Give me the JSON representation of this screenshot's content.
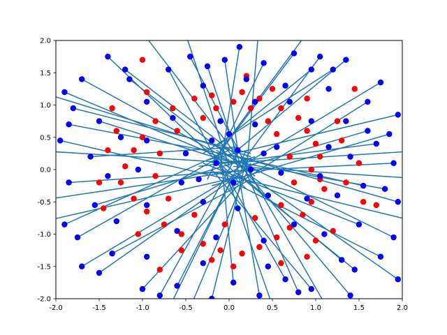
{
  "chart_data": {
    "type": "scatter",
    "title": "",
    "xlabel": "",
    "ylabel": "",
    "xlim": [
      -2.0,
      2.0
    ],
    "ylim": [
      -2.0,
      2.0
    ],
    "grid": false,
    "legend": "none",
    "x_ticks": [
      "-2.0",
      "-1.5",
      "-1.0",
      "-0.5",
      "0.0",
      "0.5",
      "1.0",
      "1.5",
      "2.0"
    ],
    "y_ticks": [
      "-2.0",
      "-1.5",
      "-1.0",
      "-0.5",
      "0.0",
      "0.5",
      "1.0",
      "1.5",
      "2.0"
    ],
    "colors": {
      "red_points": "#ff0000",
      "blue_points": "#0000ff",
      "segments": "#1f77b4"
    },
    "series": [
      {
        "marker": "red circles",
        "points": [
          [
            0.05,
            1.05
          ],
          [
            0.25,
            0.95
          ],
          [
            0.45,
            0.75
          ],
          [
            0.6,
            0.95
          ],
          [
            0.8,
            0.8
          ],
          [
            0.9,
            0.6
          ],
          [
            1.0,
            0.4
          ],
          [
            1.05,
            0.2
          ],
          [
            0.95,
            0.0
          ],
          [
            1.05,
            -0.15
          ],
          [
            1.1,
            -0.3
          ],
          [
            0.95,
            -0.5
          ],
          [
            0.85,
            -0.7
          ],
          [
            0.7,
            -0.9
          ],
          [
            0.55,
            -1.05
          ],
          [
            0.35,
            -1.2
          ],
          [
            0.15,
            -1.3
          ],
          [
            -0.1,
            -1.25
          ],
          [
            -0.3,
            -1.15
          ],
          [
            -0.55,
            -1.0
          ],
          [
            -0.75,
            -0.85
          ],
          [
            -0.95,
            -0.65
          ],
          [
            -1.1,
            -0.45
          ],
          [
            -1.25,
            -0.2
          ],
          [
            -1.2,
            0.05
          ],
          [
            -1.1,
            0.3
          ],
          [
            -1.0,
            0.5
          ],
          [
            -0.85,
            0.75
          ],
          [
            -0.65,
            0.95
          ],
          [
            -0.4,
            1.1
          ],
          [
            -0.2,
            1.15
          ],
          [
            0.15,
            1.2
          ],
          [
            0.35,
            1.1
          ],
          [
            -0.15,
            0.95
          ],
          [
            0.55,
            0.55
          ],
          [
            0.7,
            0.2
          ],
          [
            0.75,
            -0.2
          ],
          [
            0.6,
            -0.55
          ],
          [
            0.3,
            -0.75
          ],
          [
            -0.05,
            -0.85
          ],
          [
            -0.4,
            -0.7
          ],
          [
            -0.7,
            -0.45
          ],
          [
            -0.85,
            -0.1
          ],
          [
            -0.8,
            0.25
          ],
          [
            -0.6,
            0.6
          ],
          [
            -0.3,
            0.8
          ],
          [
            1.45,
            1.25
          ],
          [
            1.7,
            -0.55
          ],
          [
            -1.0,
            1.7
          ],
          [
            -0.8,
            -1.55
          ],
          [
            0.9,
            -1.35
          ],
          [
            1.3,
            0.45
          ],
          [
            -1.45,
            -0.6
          ],
          [
            0.2,
            1.45
          ],
          [
            -0.2,
            -1.4
          ],
          [
            1.2,
            -0.95
          ],
          [
            -1.35,
            0.95
          ],
          [
            0.5,
            1.25
          ],
          [
            -0.55,
            -1.25
          ],
          [
            1.35,
            -0.2
          ],
          [
            -1.4,
            0.3
          ],
          [
            0.9,
            1.1
          ],
          [
            -0.95,
            1.2
          ],
          [
            1.0,
            -1.1
          ],
          [
            -1.05,
            -1.0
          ],
          [
            0.6,
            -1.45
          ],
          [
            1.5,
            0.1
          ],
          [
            -1.5,
            -0.2
          ],
          [
            1.25,
            0.75
          ],
          [
            -1.3,
            0.6
          ],
          [
            0.05,
            -1.5
          ],
          [
            1.55,
            -0.5
          ]
        ]
      },
      {
        "marker": "blue circles",
        "points": [
          [
            0.12,
            1.9
          ],
          [
            -0.45,
            1.75
          ],
          [
            0.75,
            1.8
          ],
          [
            1.35,
            1.7
          ],
          [
            -1.4,
            1.75
          ],
          [
            -1.9,
            1.2
          ],
          [
            1.75,
            1.35
          ],
          [
            1.95,
            0.85
          ],
          [
            1.9,
            0.1
          ],
          [
            1.95,
            -0.5
          ],
          [
            1.9,
            -1.05
          ],
          [
            1.95,
            -1.7
          ],
          [
            1.4,
            -1.95
          ],
          [
            0.95,
            -1.85
          ],
          [
            0.35,
            -1.95
          ],
          [
            -0.2,
            -2.0
          ],
          [
            -1.0,
            -1.85
          ],
          [
            -1.7,
            -1.5
          ],
          [
            -1.9,
            -0.85
          ],
          [
            -1.85,
            -0.2
          ],
          [
            -1.95,
            0.45
          ],
          [
            -1.8,
            0.95
          ],
          [
            -0.7,
            1.55
          ],
          [
            0.4,
            1.65
          ],
          [
            0.95,
            1.55
          ],
          [
            1.6,
            1.05
          ],
          [
            1.7,
            0.4
          ],
          [
            1.55,
            -0.25
          ],
          [
            1.5,
            -0.85
          ],
          [
            1.3,
            -1.4
          ],
          [
            0.65,
            -1.7
          ],
          [
            -0.6,
            -1.8
          ],
          [
            -1.35,
            -1.3
          ],
          [
            -1.55,
            -0.55
          ],
          [
            -1.6,
            0.2
          ],
          [
            -1.5,
            0.75
          ],
          [
            -1.15,
            1.4
          ],
          [
            -0.25,
            1.6
          ],
          [
            0.2,
            1.4
          ],
          [
            0.65,
            1.3
          ],
          [
            1.15,
            1.25
          ],
          [
            1.35,
            0.75
          ],
          [
            1.4,
            0.2
          ],
          [
            1.25,
            -0.4
          ],
          [
            1.1,
            -1.0
          ],
          [
            0.45,
            -1.5
          ],
          [
            -0.3,
            -1.45
          ],
          [
            -0.95,
            -1.35
          ],
          [
            -1.3,
            -0.8
          ],
          [
            -1.4,
            -0.1
          ],
          [
            -1.25,
            0.5
          ],
          [
            -0.95,
            1.05
          ],
          [
            -0.3,
            1.3
          ],
          [
            0.3,
            1.05
          ],
          [
            0.7,
            1.05
          ],
          [
            0.95,
            0.75
          ],
          [
            1.15,
            0.35
          ],
          [
            1.05,
            -0.1
          ],
          [
            0.9,
            -0.45
          ],
          [
            0.75,
            -0.85
          ],
          [
            0.4,
            -1.1
          ],
          [
            -0.15,
            -1.05
          ],
          [
            -0.6,
            -0.95
          ],
          [
            -0.95,
            -0.55
          ],
          [
            -1.05,
            0.0
          ],
          [
            -0.95,
            0.45
          ],
          [
            -0.65,
            0.8
          ],
          [
            -0.1,
            0.75
          ],
          [
            0.3,
            0.7
          ],
          [
            0.55,
            0.35
          ],
          [
            0.6,
            -0.05
          ],
          [
            0.45,
            -0.4
          ],
          [
            0.1,
            -0.6
          ],
          [
            -0.3,
            -0.5
          ],
          [
            -0.55,
            -0.2
          ],
          [
            -0.5,
            0.25
          ],
          [
            -0.2,
            0.45
          ],
          [
            0.1,
            0.3
          ],
          [
            0.25,
            0.0
          ],
          [
            0.05,
            -0.2
          ],
          [
            -0.15,
            0.1
          ],
          [
            0.0,
            0.55
          ],
          [
            0.4,
            0.25
          ],
          [
            -0.35,
            -0.15
          ],
          [
            1.8,
            -0.3
          ],
          [
            1.6,
            0.6
          ],
          [
            1.75,
            -1.35
          ],
          [
            -1.75,
            -1.05
          ],
          [
            -1.7,
            1.4
          ],
          [
            0.8,
            -1.9
          ],
          [
            -0.8,
            -1.95
          ],
          [
            1.2,
            1.55
          ],
          [
            -1.2,
            1.55
          ],
          [
            1.45,
            -1.55
          ],
          [
            -1.5,
            -1.6
          ],
          [
            0.05,
            -1.75
          ],
          [
            1.05,
            1.75
          ],
          [
            -0.05,
            1.7
          ],
          [
            1.85,
            0.55
          ],
          [
            -1.85,
            0.7
          ]
        ]
      }
    ],
    "segments_description": "blue-colored lines connecting points across the plot",
    "segments": [
      [
        [
          0.12,
          1.9
        ],
        [
          -0.1,
          0.05
        ]
      ],
      [
        [
          -0.45,
          1.75
        ],
        [
          0.3,
          -0.2
        ]
      ],
      [
        [
          0.75,
          1.8
        ],
        [
          -0.2,
          0.1
        ]
      ],
      [
        [
          1.35,
          1.7
        ],
        [
          0.05,
          0.25
        ]
      ],
      [
        [
          -1.4,
          1.75
        ],
        [
          0.2,
          -0.3
        ]
      ],
      [
        [
          -1.9,
          1.2
        ],
        [
          0.15,
          0.05
        ]
      ],
      [
        [
          1.75,
          1.35
        ],
        [
          -0.05,
          -0.1
        ]
      ],
      [
        [
          1.95,
          0.85
        ],
        [
          -0.25,
          0.15
        ]
      ],
      [
        [
          1.9,
          0.1
        ],
        [
          -0.3,
          -0.05
        ]
      ],
      [
        [
          1.95,
          -0.5
        ],
        [
          0.1,
          0.2
        ]
      ],
      [
        [
          1.9,
          -1.05
        ],
        [
          -0.15,
          0.3
        ]
      ],
      [
        [
          1.95,
          -1.7
        ],
        [
          0.25,
          -0.1
        ]
      ],
      [
        [
          1.4,
          -1.95
        ],
        [
          -0.05,
          0.35
        ]
      ],
      [
        [
          0.95,
          -1.85
        ],
        [
          -0.2,
          0.0
        ]
      ],
      [
        [
          0.35,
          -1.95
        ],
        [
          0.05,
          0.4
        ]
      ],
      [
        [
          -0.2,
          -2.0
        ],
        [
          0.2,
          0.15
        ]
      ],
      [
        [
          -1.0,
          -1.85
        ],
        [
          0.1,
          -0.25
        ]
      ],
      [
        [
          -1.7,
          -1.5
        ],
        [
          0.3,
          0.1
        ]
      ],
      [
        [
          -1.9,
          -0.85
        ],
        [
          0.0,
          0.3
        ]
      ],
      [
        [
          -1.85,
          -0.2
        ],
        [
          0.35,
          0.0
        ]
      ],
      [
        [
          -1.95,
          0.45
        ],
        [
          0.15,
          -0.2
        ]
      ],
      [
        [
          -1.8,
          0.95
        ],
        [
          0.25,
          0.25
        ]
      ],
      [
        [
          -0.7,
          1.55
        ],
        [
          0.05,
          -0.35
        ]
      ],
      [
        [
          0.4,
          1.65
        ],
        [
          -0.25,
          -0.15
        ]
      ],
      [
        [
          0.95,
          1.55
        ],
        [
          -0.15,
          0.35
        ]
      ],
      [
        [
          1.6,
          1.05
        ],
        [
          0.0,
          -0.3
        ]
      ],
      [
        [
          1.7,
          0.4
        ],
        [
          -0.35,
          0.05
        ]
      ],
      [
        [
          1.55,
          -0.25
        ],
        [
          -0.1,
          0.25
        ]
      ],
      [
        [
          1.5,
          -0.85
        ],
        [
          -0.3,
          0.1
        ]
      ],
      [
        [
          1.3,
          -1.4
        ],
        [
          0.1,
          -0.05
        ]
      ],
      [
        [
          0.65,
          -1.7
        ],
        [
          -0.15,
          0.2
        ]
      ],
      [
        [
          -0.6,
          -1.8
        ],
        [
          0.2,
          0.3
        ]
      ],
      [
        [
          -1.35,
          -1.3
        ],
        [
          0.25,
          -0.15
        ]
      ],
      [
        [
          -1.55,
          -0.55
        ],
        [
          0.3,
          0.2
        ]
      ],
      [
        [
          -1.6,
          0.2
        ],
        [
          0.1,
          0.35
        ]
      ],
      [
        [
          -1.5,
          0.75
        ],
        [
          0.05,
          0.1
        ]
      ],
      [
        [
          -1.15,
          1.4
        ],
        [
          0.3,
          -0.1
        ]
      ],
      [
        [
          -0.25,
          1.6
        ],
        [
          0.15,
          0.0
        ]
      ],
      [
        [
          1.8,
          -0.3
        ],
        [
          -0.05,
          0.15
        ]
      ],
      [
        [
          1.6,
          0.6
        ],
        [
          0.2,
          0.05
        ]
      ],
      [
        [
          1.75,
          -1.35
        ],
        [
          0.05,
          -0.2
        ]
      ],
      [
        [
          -1.75,
          -1.05
        ],
        [
          -0.1,
          0.2
        ]
      ],
      [
        [
          -1.7,
          1.4
        ],
        [
          0.0,
          0.15
        ]
      ],
      [
        [
          0.8,
          -1.9
        ],
        [
          0.15,
          0.1
        ]
      ],
      [
        [
          -0.8,
          -1.95
        ],
        [
          0.1,
          0.25
        ]
      ],
      [
        [
          1.2,
          1.55
        ],
        [
          -0.3,
          0.25
        ]
      ],
      [
        [
          -1.2,
          1.55
        ],
        [
          0.35,
          -0.05
        ]
      ],
      [
        [
          1.45,
          -1.55
        ],
        [
          -0.2,
          0.25
        ]
      ],
      [
        [
          -1.5,
          -1.6
        ],
        [
          0.25,
          0.05
        ]
      ],
      [
        [
          0.05,
          -1.75
        ],
        [
          -0.1,
          0.3
        ]
      ],
      [
        [
          1.05,
          1.75
        ],
        [
          0.2,
          0.2
        ]
      ],
      [
        [
          -0.05,
          1.7
        ],
        [
          0.1,
          0.3
        ]
      ],
      [
        [
          1.85,
          0.55
        ],
        [
          -0.2,
          -0.25
        ]
      ],
      [
        [
          -1.85,
          0.7
        ],
        [
          0.3,
          0.15
        ]
      ],
      [
        [
          -2.3,
          1.25
        ],
        [
          0.25,
          0.2
        ]
      ],
      [
        [
          -2.3,
          0.3
        ],
        [
          0.1,
          0.1
        ]
      ],
      [
        [
          -2.3,
          -0.5
        ],
        [
          0.2,
          0.0
        ]
      ],
      [
        [
          -2.3,
          -0.85
        ],
        [
          0.15,
          -0.1
        ]
      ],
      [
        [
          2.3,
          0.3
        ],
        [
          -0.05,
          0.1
        ]
      ],
      [
        [
          2.3,
          -0.15
        ],
        [
          0.05,
          0.05
        ]
      ],
      [
        [
          2.3,
          -0.85
        ],
        [
          -0.15,
          -0.05
        ]
      ],
      [
        [
          -1.1,
          2.3
        ],
        [
          0.1,
          0.2
        ]
      ],
      [
        [
          -0.55,
          2.3
        ],
        [
          0.0,
          0.05
        ]
      ],
      [
        [
          0.35,
          2.3
        ],
        [
          0.2,
          -0.05
        ]
      ],
      [
        [
          1.0,
          2.3
        ],
        [
          -0.1,
          0.3
        ]
      ],
      [
        [
          -0.75,
          -2.3
        ],
        [
          0.05,
          -0.1
        ]
      ],
      [
        [
          0.55,
          -2.3
        ],
        [
          -0.05,
          0.0
        ]
      ],
      [
        [
          1.2,
          -2.3
        ],
        [
          0.15,
          0.15
        ]
      ],
      [
        [
          -0.5,
          -2.3
        ],
        [
          0.25,
          0.1
        ]
      ]
    ]
  }
}
